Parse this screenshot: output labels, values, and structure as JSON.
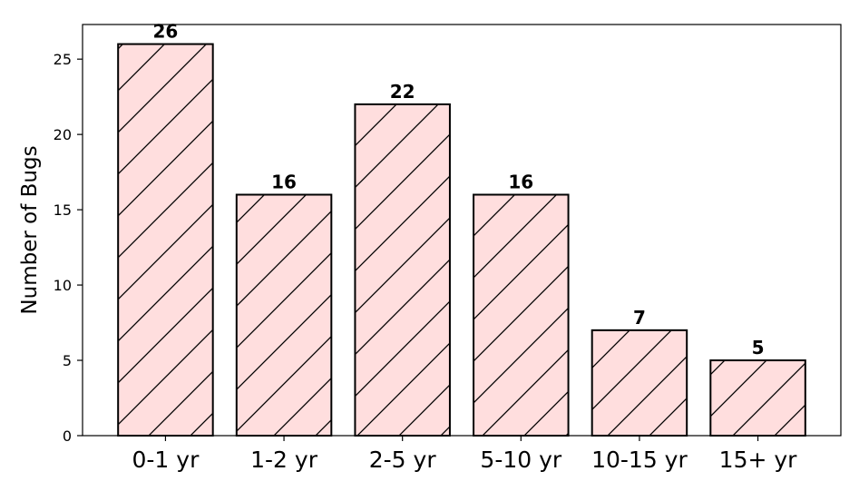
{
  "chart_data": {
    "type": "bar",
    "title": "",
    "xlabel": "",
    "ylabel": "Number of Bugs",
    "categories": [
      "0-1 yr",
      "1-2 yr",
      "2-5 yr",
      "5-10 yr",
      "10-15 yr",
      "15+ yr"
    ],
    "values": [
      26,
      16,
      22,
      16,
      7,
      5
    ],
    "data_labels": [
      "26",
      "16",
      "22",
      "16",
      "7",
      "5"
    ],
    "ylim": [
      0,
      27.3
    ],
    "yticks": [
      0,
      5,
      10,
      15,
      20,
      25
    ],
    "ytick_labels": [
      "0",
      "5",
      "10",
      "15",
      "20",
      "25"
    ],
    "grid": false,
    "bar_fill": "#ffdede",
    "bar_edge": "#000000",
    "hatch": "diagonal"
  }
}
